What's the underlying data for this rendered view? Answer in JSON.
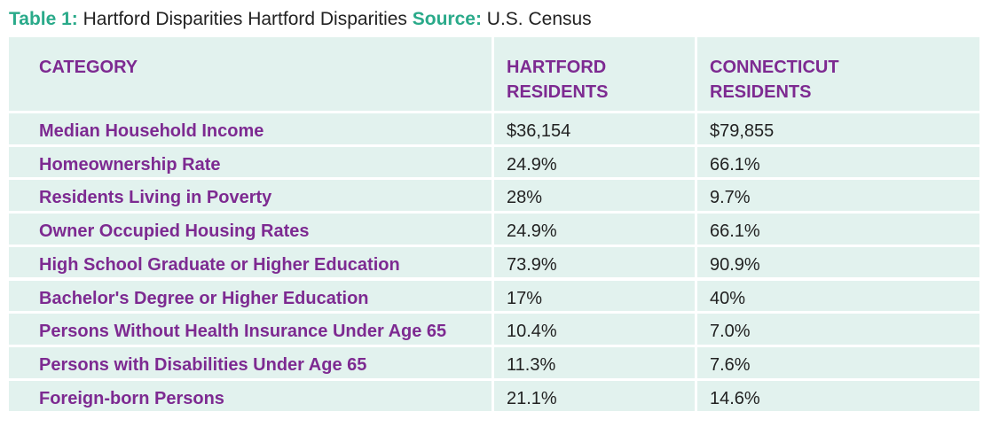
{
  "caption": {
    "label": "Table 1:",
    "title": "Hartford Disparities Hartford Disparities",
    "source_label": "Source:",
    "source": "U.S. Census"
  },
  "table": {
    "headers": [
      "CATEGORY",
      "HARTFORD RESIDENTS",
      "CONNECTICUT RESIDENTS"
    ],
    "rows": [
      [
        "Median Household Income",
        "$36,154",
        "$79,855"
      ],
      [
        "Homeownership Rate",
        "24.9%",
        "66.1%"
      ],
      [
        "Residents Living in Poverty",
        "28%",
        "9.7%"
      ],
      [
        "Owner Occupied Housing Rates",
        "24.9%",
        "66.1%"
      ],
      [
        "High School Graduate or Higher Education",
        "73.9%",
        "90.9%"
      ],
      [
        "Bachelor's Degree or Higher Education",
        "17%",
        "40%"
      ],
      [
        "Persons Without Health Insurance Under Age 65",
        "10.4%",
        "7.0%"
      ],
      [
        "Persons with Disabilities Under Age 65",
        "11.3%",
        "7.6%"
      ],
      [
        "Foreign-born Persons",
        "21.1%",
        "14.6%"
      ]
    ]
  },
  "colors": {
    "accent_green": "#2aaa8a",
    "accent_purple": "#7d2a91",
    "cell_background": "#e2f2ee"
  }
}
